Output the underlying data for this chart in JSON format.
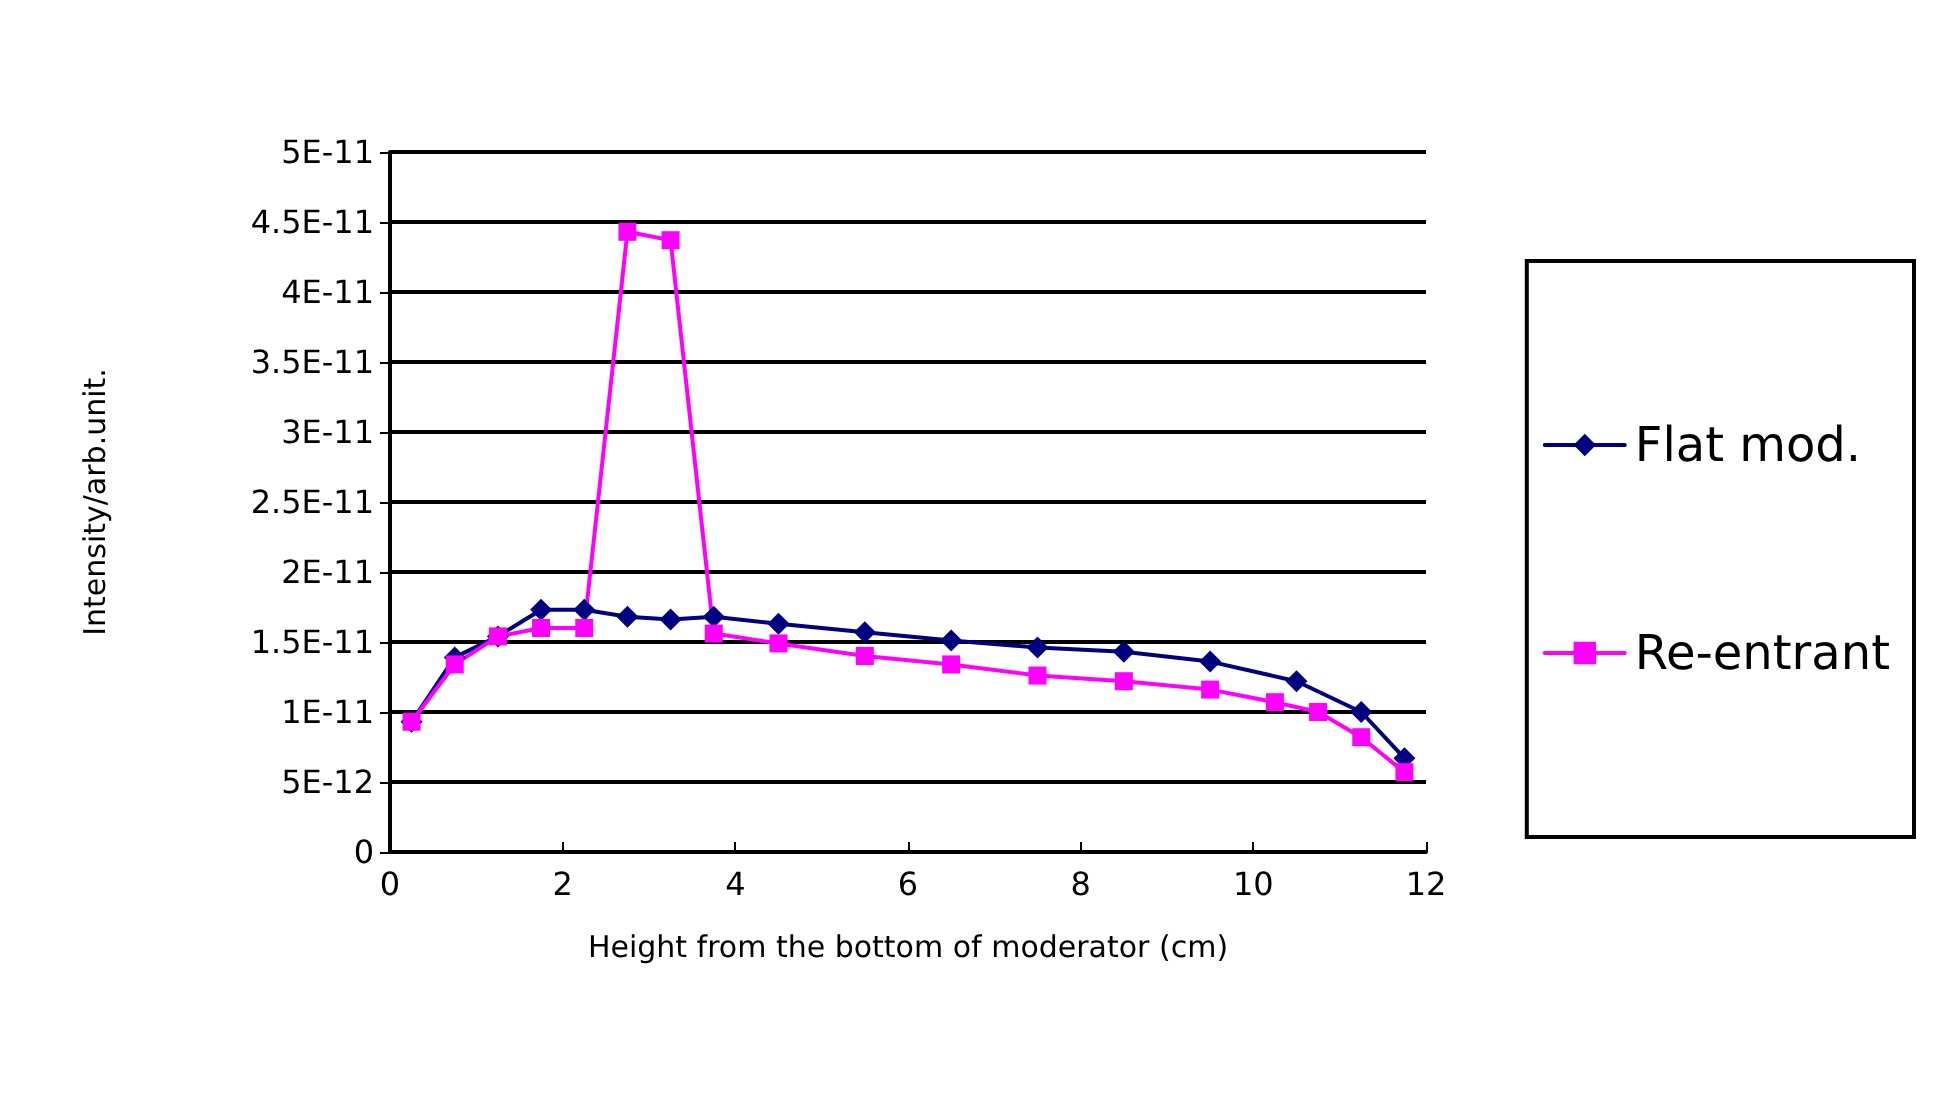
{
  "chart_data": {
    "type": "line",
    "xlabel": "Height from the bottom of moderator (cm)",
    "ylabel": "Intensity/arb.unit.",
    "xlim": [
      0,
      12
    ],
    "xticks": [
      0,
      2,
      4,
      6,
      8,
      10,
      12
    ],
    "ylim": [
      0,
      5e-11
    ],
    "yticks": [
      0,
      {
        "value": 5e-12,
        "label": "5E-12"
      },
      {
        "value": 1e-11,
        "label": "1E-11"
      },
      {
        "value": 1.5e-11,
        "label": "1.5E-11"
      },
      {
        "value": 2e-11,
        "label": "2E-11"
      },
      {
        "value": 2.5e-11,
        "label": "2.5E-11"
      },
      {
        "value": 3e-11,
        "label": "3E-11"
      },
      {
        "value": 3.5e-11,
        "label": "3.5E-11"
      },
      {
        "value": 4e-11,
        "label": "4E-11"
      },
      {
        "value": 4.5e-11,
        "label": "4.5E-11"
      },
      {
        "value": 5e-11,
        "label": "5E-11"
      }
    ],
    "grid": "y",
    "legend": "right",
    "series": [
      {
        "name": "Flat mod.",
        "color": "#000080",
        "marker": "diamond",
        "x": [
          0.25,
          0.75,
          1.25,
          1.75,
          2.25,
          2.75,
          3.25,
          3.75,
          4.5,
          5.5,
          6.5,
          7.5,
          8.5,
          9.5,
          10.5,
          11.25,
          11.75
        ],
        "values": [
          9.3e-12,
          1.39e-11,
          1.54e-11,
          1.73e-11,
          1.73e-11,
          1.68e-11,
          1.66e-11,
          1.68e-11,
          1.63e-11,
          1.57e-11,
          1.51e-11,
          1.46e-11,
          1.43e-11,
          1.36e-11,
          1.22e-11,
          1e-11,
          6.7e-12
        ]
      },
      {
        "name": "Re-entrant",
        "color": "#ff00ff",
        "marker": "square",
        "x": [
          0.25,
          0.75,
          1.25,
          1.75,
          2.25,
          2.75,
          3.25,
          3.75,
          4.5,
          5.5,
          6.5,
          7.5,
          8.5,
          9.5,
          10.25,
          10.75,
          11.25,
          11.75
        ],
        "values": [
          9.3e-12,
          1.34e-11,
          1.54e-11,
          1.6e-11,
          1.6e-11,
          4.43e-11,
          4.37e-11,
          1.56e-11,
          1.49e-11,
          1.4e-11,
          1.34e-11,
          1.26e-11,
          1.22e-11,
          1.16e-11,
          1.07e-11,
          1e-11,
          8.2e-12,
          5.7e-12
        ]
      }
    ]
  }
}
